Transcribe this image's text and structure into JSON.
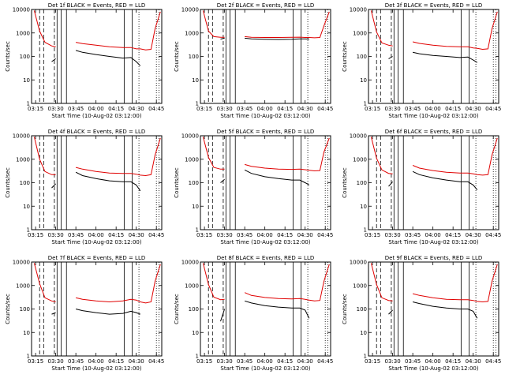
{
  "common": {
    "xlabel": "Start Time (10-Aug-02 03:12:00)",
    "ylabel": "Counts/sec",
    "xticks": [
      "03:15",
      "03:30",
      "03:45",
      "04:00",
      "04:15",
      "04:30",
      "04:45"
    ],
    "yticks": [
      "1",
      "10",
      "100",
      "1000",
      "10000"
    ],
    "xlim": [
      "03:12",
      "04:49"
    ],
    "ylim": [
      1,
      10000
    ],
    "yscale": "log",
    "series_colors": {
      "events": "#000000",
      "lld": "#e00000"
    }
  },
  "chart_data": [
    {
      "type": "line",
      "title": "Det 1f BLACK = Events, RED = LLD",
      "x": [
        "03:14",
        "03:18",
        "03:22",
        "03:27",
        "03:30",
        "03:31",
        "03:42",
        "03:45",
        "03:50",
        "04:00",
        "04:10",
        "04:20",
        "04:26",
        "04:30",
        "04:33",
        "04:37",
        "04:41",
        "04:44",
        "04:48"
      ],
      "series": [
        {
          "name": "LLD",
          "values": [
            9000,
            1200,
            400,
            280,
            260,
            null,
            null,
            400,
            350,
            300,
            260,
            240,
            240,
            210,
            210,
            190,
            200,
            1500,
            8000
          ]
        },
        {
          "name": "Events",
          "values": [
            null,
            null,
            null,
            60,
            80,
            null,
            null,
            180,
            150,
            120,
            100,
            85,
            90,
            60,
            40,
            null,
            null,
            null,
            null
          ]
        }
      ],
      "dashed_lines": [
        "03:18",
        "03:21",
        "03:29"
      ],
      "solid_lines": [
        "03:31",
        "03:34",
        "03:38",
        "04:21",
        "04:27"
      ],
      "dotted_lines": [
        "04:32",
        "04:45",
        "04:47"
      ]
    },
    {
      "type": "line",
      "title": "Det 2f BLACK = Events, RED = LLD",
      "x": [
        "03:14",
        "03:18",
        "03:22",
        "03:27",
        "03:30",
        "03:31",
        "03:42",
        "03:45",
        "03:50",
        "04:00",
        "04:10",
        "04:20",
        "04:26",
        "04:30",
        "04:33",
        "04:37",
        "04:41",
        "04:44",
        "04:48"
      ],
      "series": [
        {
          "name": "LLD",
          "values": [
            9000,
            1200,
            700,
            650,
            650,
            null,
            null,
            700,
            650,
            640,
            640,
            650,
            660,
            640,
            640,
            620,
            640,
            2000,
            8000
          ]
        },
        {
          "name": "Events",
          "values": [
            null,
            null,
            null,
            550,
            600,
            null,
            null,
            600,
            560,
            540,
            530,
            540,
            560,
            560,
            550,
            null,
            null,
            null,
            null
          ]
        }
      ],
      "dashed_lines": [
        "03:18",
        "03:21",
        "03:29"
      ],
      "solid_lines": [
        "03:31",
        "03:34",
        "03:38",
        "04:21",
        "04:27"
      ],
      "dotted_lines": [
        "04:32",
        "04:45",
        "04:47"
      ]
    },
    {
      "type": "line",
      "title": "Det 3f BLACK = Events, RED = LLD",
      "x": [
        "03:14",
        "03:18",
        "03:22",
        "03:27",
        "03:30",
        "03:31",
        "03:42",
        "03:45",
        "03:50",
        "04:00",
        "04:10",
        "04:20",
        "04:26",
        "04:30",
        "04:33",
        "04:37",
        "04:41",
        "04:44",
        "04:48"
      ],
      "series": [
        {
          "name": "LLD",
          "values": [
            9000,
            1100,
            380,
            300,
            280,
            null,
            null,
            420,
            360,
            300,
            270,
            260,
            260,
            230,
            220,
            200,
            210,
            1500,
            8000
          ]
        },
        {
          "name": "Events",
          "values": [
            null,
            null,
            null,
            80,
            100,
            null,
            null,
            150,
            130,
            110,
            100,
            90,
            95,
            70,
            55,
            null,
            null,
            null,
            null
          ]
        }
      ],
      "dashed_lines": [
        "03:18",
        "03:21",
        "03:29"
      ],
      "solid_lines": [
        "03:31",
        "03:34",
        "03:38",
        "04:21",
        "04:27"
      ],
      "dotted_lines": [
        "04:32",
        "04:45",
        "04:47"
      ]
    },
    {
      "type": "line",
      "title": "Det 4f BLACK = Events, RED = LLD",
      "x": [
        "03:14",
        "03:18",
        "03:22",
        "03:27",
        "03:30",
        "03:31",
        "03:42",
        "03:45",
        "03:50",
        "04:00",
        "04:10",
        "04:20",
        "04:26",
        "04:30",
        "04:33",
        "04:37",
        "04:41",
        "04:44",
        "04:48"
      ],
      "series": [
        {
          "name": "LLD",
          "values": [
            9000,
            1000,
            300,
            220,
            220,
            null,
            null,
            450,
            380,
            300,
            260,
            250,
            250,
            230,
            210,
            200,
            220,
            1500,
            8000
          ]
        },
        {
          "name": "Events",
          "values": [
            null,
            null,
            null,
            60,
            90,
            null,
            null,
            280,
            200,
            150,
            120,
            110,
            110,
            80,
            45,
            null,
            null,
            null,
            null
          ]
        }
      ],
      "dashed_lines": [
        "03:18",
        "03:21",
        "03:29"
      ],
      "solid_lines": [
        "03:31",
        "03:34",
        "03:38",
        "04:21",
        "04:27"
      ],
      "dotted_lines": [
        "04:32",
        "04:45",
        "04:47"
      ]
    },
    {
      "type": "line",
      "title": "Det 5f BLACK = Events, RED = LLD",
      "x": [
        "03:14",
        "03:18",
        "03:22",
        "03:27",
        "03:30",
        "03:31",
        "03:42",
        "03:45",
        "03:50",
        "04:00",
        "04:10",
        "04:20",
        "04:26",
        "04:30",
        "04:33",
        "04:37",
        "04:41",
        "04:44",
        "04:48"
      ],
      "series": [
        {
          "name": "LLD",
          "values": [
            9000,
            1200,
            450,
            380,
            380,
            null,
            null,
            600,
            500,
            420,
            380,
            370,
            380,
            360,
            340,
            320,
            330,
            2000,
            8000
          ]
        },
        {
          "name": "Events",
          "values": [
            null,
            null,
            null,
            100,
            140,
            null,
            null,
            350,
            250,
            180,
            150,
            130,
            130,
            100,
            80,
            null,
            null,
            null,
            null
          ]
        }
      ],
      "dashed_lines": [
        "03:18",
        "03:21",
        "03:29"
      ],
      "solid_lines": [
        "03:31",
        "03:34",
        "03:38",
        "04:21",
        "04:27"
      ],
      "dotted_lines": [
        "04:32",
        "04:45",
        "04:47"
      ]
    },
    {
      "type": "line",
      "title": "Det 6f BLACK = Events, RED = LLD",
      "x": [
        "03:14",
        "03:18",
        "03:22",
        "03:27",
        "03:30",
        "03:31",
        "03:42",
        "03:45",
        "03:50",
        "04:00",
        "04:10",
        "04:20",
        "04:26",
        "04:30",
        "04:33",
        "04:37",
        "04:41",
        "04:44",
        "04:48"
      ],
      "series": [
        {
          "name": "LLD",
          "values": [
            9000,
            1100,
            350,
            250,
            240,
            null,
            null,
            550,
            420,
            330,
            280,
            260,
            260,
            240,
            220,
            210,
            220,
            1500,
            8000
          ]
        },
        {
          "name": "Events",
          "values": [
            null,
            null,
            null,
            70,
            110,
            null,
            null,
            300,
            220,
            160,
            130,
            110,
            110,
            80,
            50,
            null,
            null,
            null,
            null
          ]
        }
      ],
      "dashed_lines": [
        "03:18",
        "03:21",
        "03:29"
      ],
      "solid_lines": [
        "03:31",
        "03:34",
        "03:38",
        "04:21",
        "04:27"
      ],
      "dotted_lines": [
        "04:32",
        "04:45",
        "04:47"
      ]
    },
    {
      "type": "line",
      "title": "Det 7f BLACK = Events, RED = LLD",
      "x": [
        "03:14",
        "03:18",
        "03:22",
        "03:27",
        "03:30",
        "03:31",
        "03:42",
        "03:45",
        "03:50",
        "04:00",
        "04:10",
        "04:20",
        "04:26",
        "04:30",
        "04:33",
        "04:37",
        "04:41",
        "04:44",
        "04:48"
      ],
      "series": [
        {
          "name": "LLD",
          "values": [
            9000,
            1200,
            300,
            220,
            200,
            null,
            null,
            300,
            260,
            220,
            200,
            220,
            260,
            240,
            200,
            180,
            200,
            1500,
            8000
          ]
        },
        {
          "name": "Events",
          "values": [
            null,
            null,
            null,
            60,
            70,
            null,
            null,
            100,
            85,
            70,
            60,
            65,
            80,
            70,
            60,
            null,
            null,
            null,
            null
          ]
        }
      ],
      "dashed_lines": [
        "03:18",
        "03:21",
        "03:29"
      ],
      "solid_lines": [
        "03:31",
        "03:34",
        "03:38",
        "04:21",
        "04:27"
      ],
      "dotted_lines": [
        "04:32",
        "04:45",
        "04:47"
      ]
    },
    {
      "type": "line",
      "title": "Det 8f BLACK = Events, RED = LLD",
      "x": [
        "03:14",
        "03:18",
        "03:22",
        "03:27",
        "03:30",
        "03:31",
        "03:42",
        "03:45",
        "03:50",
        "04:00",
        "04:10",
        "04:20",
        "04:26",
        "04:30",
        "04:33",
        "04:37",
        "04:41",
        "04:44",
        "04:48"
      ],
      "series": [
        {
          "name": "LLD",
          "values": [
            9000,
            1100,
            320,
            250,
            260,
            null,
            null,
            500,
            380,
            310,
            280,
            270,
            280,
            260,
            240,
            220,
            230,
            1500,
            8000
          ]
        },
        {
          "name": "Events",
          "values": [
            null,
            null,
            null,
            30,
            100,
            null,
            null,
            220,
            180,
            140,
            120,
            110,
            110,
            90,
            40,
            null,
            null,
            null,
            null
          ]
        }
      ],
      "dashed_lines": [
        "03:18",
        "03:21",
        "03:29"
      ],
      "solid_lines": [
        "03:31",
        "03:34",
        "03:38",
        "04:21",
        "04:27"
      ],
      "dotted_lines": [
        "04:32",
        "04:45",
        "04:47"
      ]
    },
    {
      "type": "line",
      "title": "Det 9f BLACK = Events, RED = LLD",
      "x": [
        "03:14",
        "03:18",
        "03:22",
        "03:27",
        "03:30",
        "03:31",
        "03:42",
        "03:45",
        "03:50",
        "04:00",
        "04:10",
        "04:20",
        "04:26",
        "04:30",
        "04:33",
        "04:37",
        "04:41",
        "04:44",
        "04:48"
      ],
      "series": [
        {
          "name": "LLD",
          "values": [
            9000,
            1100,
            300,
            230,
            220,
            null,
            null,
            450,
            380,
            300,
            260,
            250,
            250,
            230,
            210,
            200,
            210,
            1500,
            8000
          ]
        },
        {
          "name": "Events",
          "values": [
            null,
            null,
            null,
            60,
            90,
            null,
            null,
            200,
            170,
            130,
            110,
            100,
            100,
            80,
            40,
            null,
            null,
            null,
            null
          ]
        }
      ],
      "dashed_lines": [
        "03:18",
        "03:21",
        "03:29"
      ],
      "solid_lines": [
        "03:31",
        "03:34",
        "03:38",
        "04:21",
        "04:27"
      ],
      "dotted_lines": [
        "04:32",
        "04:45",
        "04:47"
      ]
    }
  ]
}
